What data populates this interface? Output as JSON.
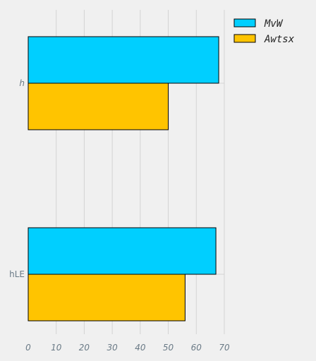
{
  "chart_data": {
    "type": "bar",
    "orientation": "horizontal",
    "categories": [
      "h",
      "hLE"
    ],
    "category_label_italic": [
      true,
      false
    ],
    "series": [
      {
        "name": "MvW",
        "values": [
          68,
          67
        ],
        "color": "#00cfff"
      },
      {
        "name": "Awtsx",
        "values": [
          50,
          56
        ],
        "color": "#ffc400"
      }
    ],
    "xlim": [
      0,
      70
    ],
    "xticks": [
      0,
      10,
      20,
      30,
      40,
      50,
      60,
      70
    ],
    "grid": true,
    "legend": "top-right",
    "title": "",
    "xlabel": "",
    "ylabel": "",
    "colors": {
      "background": "#f0f0f0",
      "grid": "#d3d3d3",
      "bar_edge": "#000000",
      "tick_text": "#6a7a86"
    }
  }
}
